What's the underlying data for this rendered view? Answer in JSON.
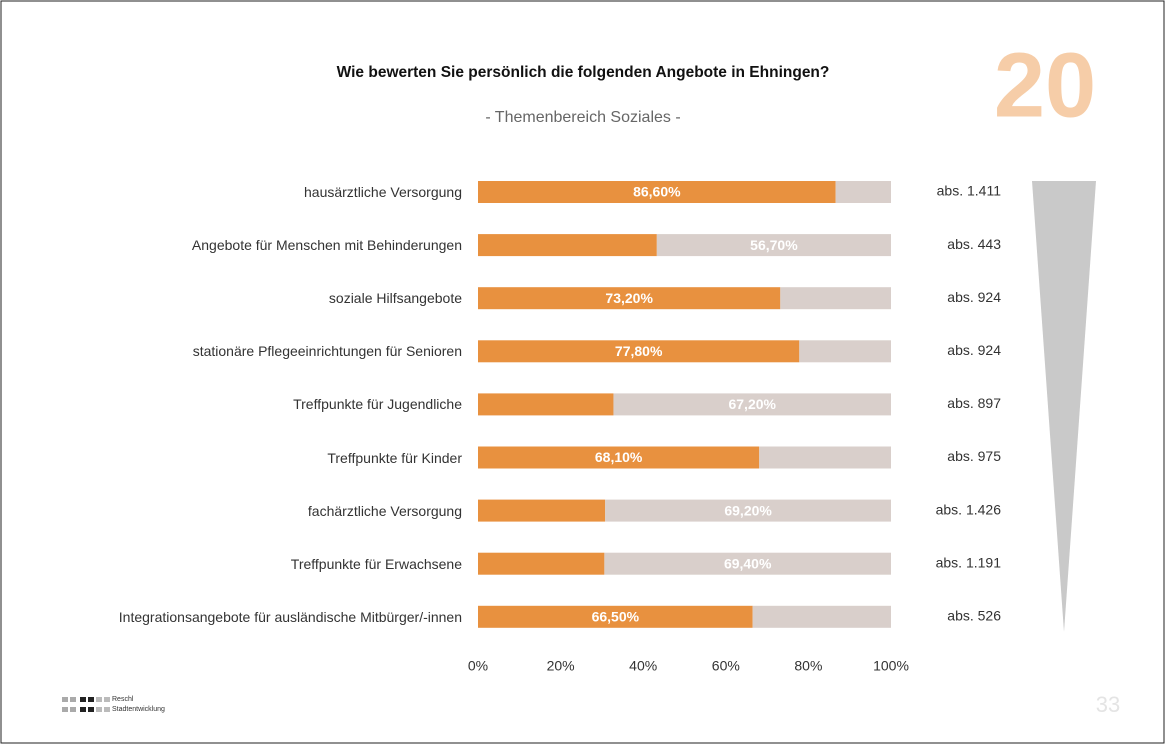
{
  "chart_data": {
    "type": "stacked_bar_horizontal",
    "title": "Wie bewerten Sie persönlich die folgenden Angebote in Ehningen?",
    "subtitle": "- Themenbereich Soziales -",
    "badge": "20",
    "page_number": "33",
    "logo": [
      "Reschl",
      "Stadtentwicklung"
    ],
    "categories": [
      "hausärztliche Versorgung",
      "Angebote für Menschen mit Behinderungen",
      "soziale Hilfsangebote",
      "stationäre Pflegeeinrichtungen für Senioren",
      "Treffpunkte für Jugendliche",
      "Treffpunkte für Kinder",
      "fachärztliche Versorgung",
      "Treffpunkte für Erwachsene",
      "Integrationsangebote für ausländische Mitbürger/-innen"
    ],
    "series": [
      {
        "color": "#e8913f",
        "values": [
          86.6,
          43.3,
          73.2,
          77.8,
          32.8,
          68.1,
          30.8,
          30.6,
          66.5
        ],
        "value_labels": [
          "86,60%",
          null,
          "73,20%",
          "77,80%",
          null,
          "68,10%",
          null,
          null,
          "66,50%"
        ]
      },
      {
        "color": "#d9cfcb",
        "values": [
          13.4,
          56.7,
          26.8,
          22.2,
          67.2,
          31.9,
          69.2,
          69.4,
          33.5
        ],
        "value_labels": [
          null,
          "56,70%",
          null,
          null,
          "67,20%",
          null,
          "69,20%",
          "69,40%",
          null
        ]
      }
    ],
    "annotations": [
      "abs. 1.411",
      "abs. 443",
      "abs. 924",
      "abs. 924",
      "abs. 897",
      "abs. 975",
      "abs. 1.426",
      "abs. 1.191",
      "abs. 526"
    ],
    "xlim": [
      0,
      100
    ],
    "xticks": [
      {
        "value": 0,
        "label": "0%"
      },
      {
        "value": 20,
        "label": "20%"
      },
      {
        "value": 40,
        "label": "40%"
      },
      {
        "value": 60,
        "label": "60%"
      },
      {
        "value": 80,
        "label": "80%"
      },
      {
        "value": 100,
        "label": "100%"
      }
    ],
    "grid": false
  }
}
